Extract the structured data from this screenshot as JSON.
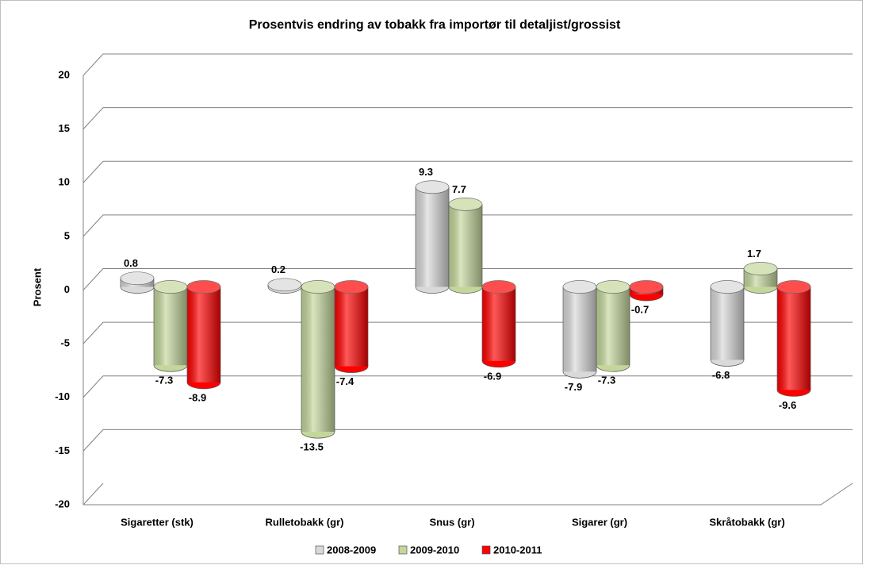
{
  "chart_data": {
    "type": "bar3d",
    "title": "Prosentvis endring av tobakk fra importør til detaljist/grossist",
    "y_label": "Prosent",
    "categories": [
      "Sigaretter (stk)",
      "Rulletobakk (gr)",
      "Snus (gr)",
      "Sigarer (gr)",
      "Skråtobakk (gr)"
    ],
    "series": [
      {
        "name": "2008-2009",
        "color": "#d9d9d9",
        "values": [
          0.8,
          0.2,
          9.3,
          -7.9,
          -6.8
        ]
      },
      {
        "name": "2009-2010",
        "color": "#c4d79b",
        "values": [
          -7.3,
          -13.5,
          7.7,
          -7.3,
          1.7
        ]
      },
      {
        "name": "2010-2011",
        "color": "#ff0000",
        "values": [
          -8.9,
          -7.4,
          -6.9,
          -0.7,
          -9.6
        ]
      }
    ],
    "ylim": [
      -20,
      20
    ],
    "yticks": [
      -20,
      -15,
      -10,
      -5,
      0,
      5,
      10,
      15,
      20
    ],
    "grid": true,
    "legend": "bottom"
  }
}
